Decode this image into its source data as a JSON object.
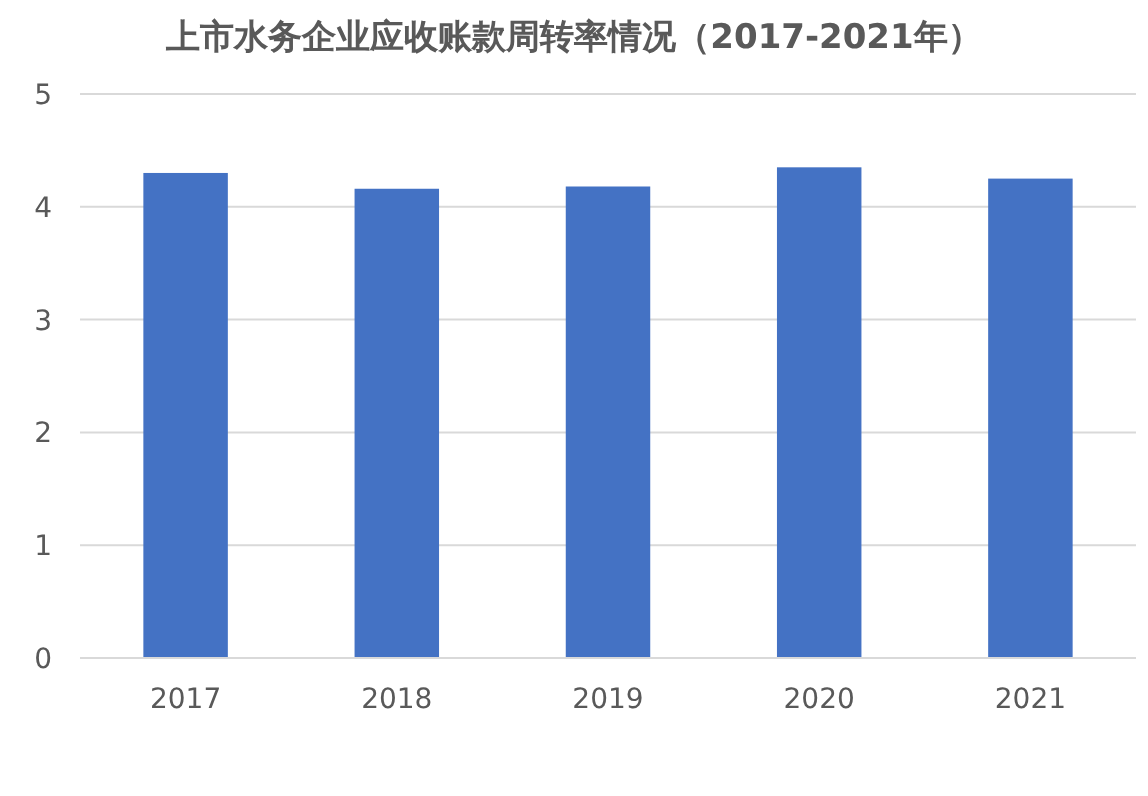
{
  "chart_data": {
    "type": "bar",
    "title": "上市水务企业应收账款周转率情况（2017-2021年）",
    "categories": [
      "2017",
      "2018",
      "2019",
      "2020",
      "2021"
    ],
    "values": [
      4.3,
      4.16,
      4.18,
      4.35,
      4.25
    ],
    "color": "#4472c4",
    "ylim": [
      0,
      5
    ],
    "yticks": [
      0,
      1,
      2,
      3,
      4,
      5
    ],
    "grid": "y"
  }
}
